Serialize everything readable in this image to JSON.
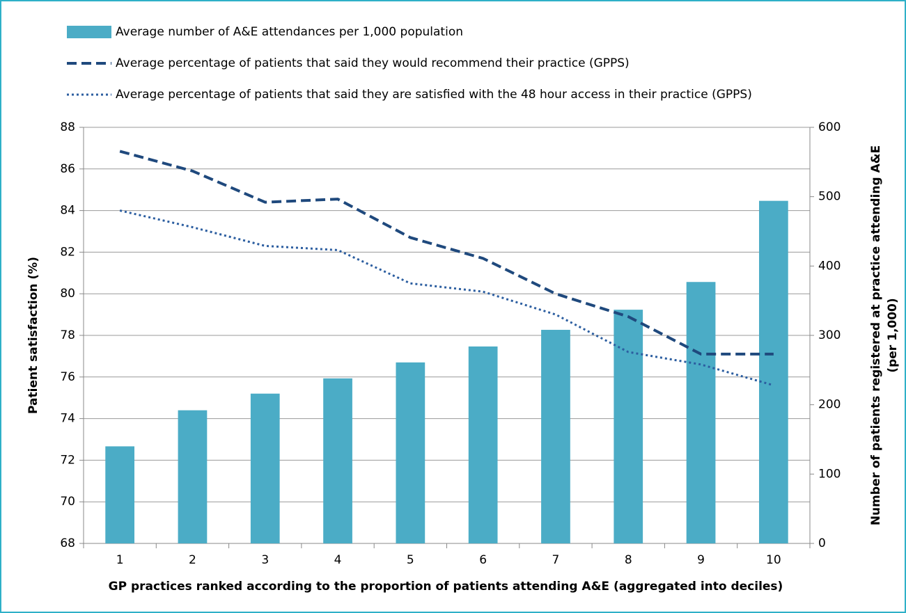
{
  "chart_data": {
    "type": "bar_line",
    "xlabel": "GP practices ranked according to the proportion of patients attending A&E (aggregated into deciles)",
    "ylabel": "Patient satisfaction (%)",
    "y2label": [
      "Number of patients registered at practice attending A&E",
      "(per 1,000)"
    ],
    "categories": [
      "1",
      "2",
      "3",
      "4",
      "5",
      "6",
      "7",
      "8",
      "9",
      "10"
    ],
    "ylim": [
      68,
      88
    ],
    "yticks": [
      68,
      70,
      72,
      74,
      76,
      78,
      80,
      82,
      84,
      86,
      88
    ],
    "y2lim": [
      0,
      600
    ],
    "y2ticks": [
      0,
      100,
      200,
      300,
      400,
      500,
      600
    ],
    "grid": true,
    "legend": "top",
    "series": [
      {
        "name": "Average number of A&E attendances per 1,000 population",
        "kind": "bar",
        "axis": "y2",
        "color": "#4bacc6",
        "values": [
          140,
          192,
          216,
          238,
          261,
          284,
          308,
          337,
          377,
          494
        ]
      },
      {
        "name": "Average percentage of patients that said they would recommend their practice (GPPS)",
        "kind": "line",
        "dash": "dashed",
        "color": "#1f497d",
        "values": [
          86.85,
          85.9,
          84.4,
          84.55,
          82.7,
          81.7,
          80.0,
          78.9,
          77.1,
          77.1
        ]
      },
      {
        "name": "Average percentage of patients that said they are satisfied with the 48 hour access in their practice (GPPS)",
        "kind": "line",
        "dash": "dotted",
        "color": "#2c5ea0",
        "values": [
          84.0,
          83.2,
          82.3,
          82.1,
          80.5,
          80.1,
          79.0,
          77.2,
          76.6,
          75.6
        ]
      }
    ]
  }
}
